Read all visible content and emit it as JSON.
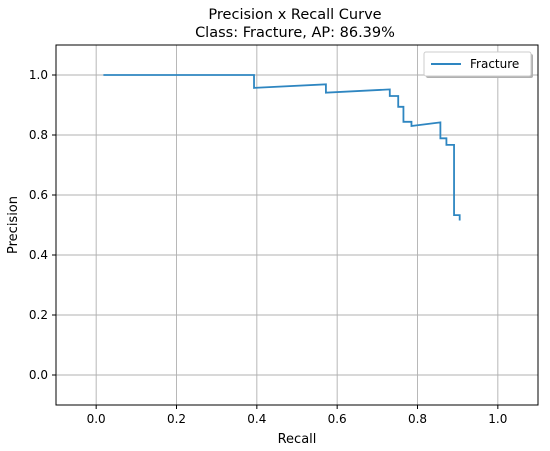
{
  "chart_data": {
    "type": "line",
    "title": "Precision x Recall Curve",
    "subtitle": "Class: Fracture, AP: 86.39%",
    "xlabel": "Recall",
    "ylabel": "Precision",
    "xlim": [
      -0.1,
      1.1
    ],
    "ylim": [
      -0.1,
      1.1
    ],
    "x_ticks": [
      0.0,
      0.2,
      0.4,
      0.6,
      0.8,
      1.0
    ],
    "y_ticks": [
      0.0,
      0.2,
      0.4,
      0.6,
      0.8,
      1.0
    ],
    "x_tick_labels": [
      "0.0",
      "0.2",
      "0.4",
      "0.6",
      "0.8",
      "1.0"
    ],
    "y_tick_labels": [
      "0.0",
      "0.2",
      "0.4",
      "0.6",
      "0.8",
      "1.0"
    ],
    "grid": true,
    "legend_position": "top-right",
    "series": [
      {
        "name": "Fracture",
        "color": "#2e86c1",
        "x": [
          0.018,
          0.393,
          0.393,
          0.572,
          0.572,
          0.731,
          0.731,
          0.752,
          0.752,
          0.765,
          0.765,
          0.785,
          0.785,
          0.857,
          0.857,
          0.872,
          0.872,
          0.891,
          0.891,
          0.905,
          0.905
        ],
        "y": [
          1.0,
          1.0,
          0.957,
          0.969,
          0.941,
          0.952,
          0.93,
          0.93,
          0.894,
          0.894,
          0.844,
          0.844,
          0.83,
          0.842,
          0.789,
          0.789,
          0.767,
          0.767,
          0.533,
          0.533,
          0.515
        ]
      }
    ]
  }
}
